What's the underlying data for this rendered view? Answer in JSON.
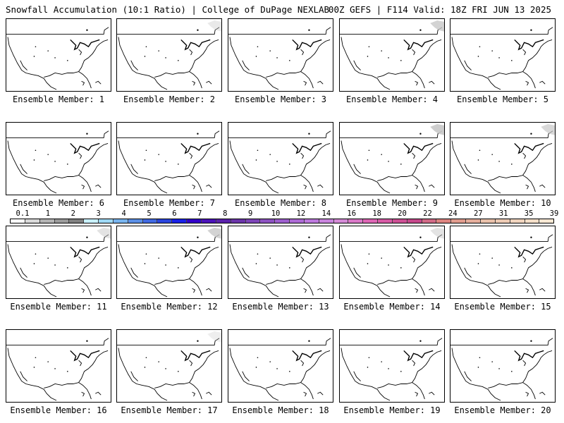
{
  "header": {
    "left": "Snowfall Accumulation (10:1 Ratio) | College of DuPage NEXLAB",
    "right": "00Z GEFS | F114 Valid: 18Z FRI JUN 13 2025"
  },
  "panel_label_prefix": "Ensemble Member: ",
  "members": [
    {
      "id": 1,
      "label": "Ensemble Member: 1",
      "snow_ne": 0
    },
    {
      "id": 2,
      "label": "Ensemble Member: 2",
      "snow_ne": 0.4
    },
    {
      "id": 3,
      "label": "Ensemble Member: 3",
      "snow_ne": 0
    },
    {
      "id": 4,
      "label": "Ensemble Member: 4",
      "snow_ne": 0.8
    },
    {
      "id": 5,
      "label": "Ensemble Member: 5",
      "snow_ne": 0
    },
    {
      "id": 6,
      "label": "Ensemble Member: 6",
      "snow_ne": 0
    },
    {
      "id": 7,
      "label": "Ensemble Member: 7",
      "snow_ne": 0
    },
    {
      "id": 8,
      "label": "Ensemble Member: 8",
      "snow_ne": 0
    },
    {
      "id": 9,
      "label": "Ensemble Member: 9",
      "snow_ne": 0.9
    },
    {
      "id": 10,
      "label": "Ensemble Member: 10",
      "snow_ne": 0.7
    },
    {
      "id": 11,
      "label": "Ensemble Member: 11",
      "snow_ne": 0.5
    },
    {
      "id": 12,
      "label": "Ensemble Member: 12",
      "snow_ne": 0.8
    },
    {
      "id": 13,
      "label": "Ensemble Member: 13",
      "snow_ne": 0
    },
    {
      "id": 14,
      "label": "Ensemble Member: 14",
      "snow_ne": 0.5
    },
    {
      "id": 15,
      "label": "Ensemble Member: 15",
      "snow_ne": 0
    },
    {
      "id": 16,
      "label": "Ensemble Member: 16",
      "snow_ne": 0
    },
    {
      "id": 17,
      "label": "Ensemble Member: 17",
      "snow_ne": 0.3
    },
    {
      "id": 18,
      "label": "Ensemble Member: 18",
      "snow_ne": 0
    },
    {
      "id": 19,
      "label": "Ensemble Member: 19",
      "snow_ne": 0
    },
    {
      "id": 20,
      "label": "Ensemble Member: 20",
      "snow_ne": 0
    }
  ],
  "colorbar": {
    "labels": [
      "0.1",
      "1",
      "2",
      "3",
      "4",
      "5",
      "6",
      "7",
      "8",
      "9",
      "10",
      "12",
      "14",
      "16",
      "18",
      "20",
      "22",
      "24",
      "27",
      "31",
      "35",
      "39"
    ],
    "colors": [
      "#ffffff",
      "#d9d9d9",
      "#b4b4b4",
      "#9a9a9a",
      "#808080",
      "#c8f0ff",
      "#9ed8f5",
      "#78b4ee",
      "#5a8ee4",
      "#4068e0",
      "#2a44dc",
      "#1820e6",
      "#3200c8",
      "#4a12b8",
      "#5a22aa",
      "#6a34a8",
      "#7c44b6",
      "#8c52c0",
      "#9c5ecc",
      "#ac6ad4",
      "#bc78dc",
      "#c884dc",
      "#d48ad6",
      "#d878c6",
      "#dc66b4",
      "#d65aa4",
      "#cc5094",
      "#c4488a",
      "#d06a86",
      "#dc8480",
      "#e09c8e",
      "#e4ae9c",
      "#e8c0aa",
      "#eccab4",
      "#f0d4be",
      "#f4dec8",
      "#f8e8d4"
    ]
  }
}
